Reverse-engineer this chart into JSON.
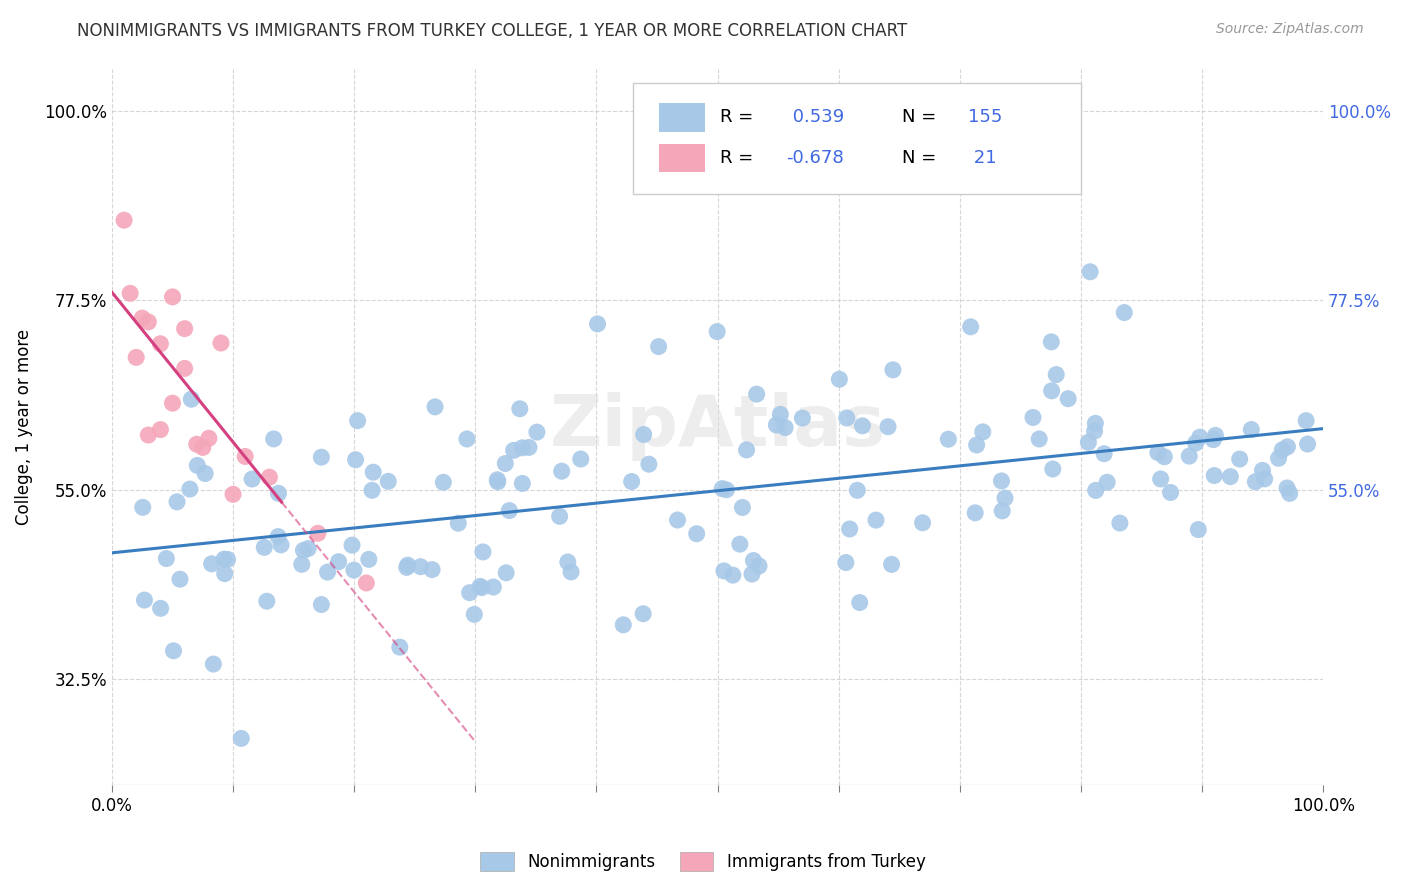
{
  "title": "NONIMMIGRANTS VS IMMIGRANTS FROM TURKEY COLLEGE, 1 YEAR OR MORE CORRELATION CHART",
  "source_text": "Source: ZipAtlas.com",
  "ylabel": "College, 1 year or more",
  "x_min": 0.0,
  "x_max": 1.0,
  "y_min": 0.2,
  "y_max": 1.05,
  "blue_R": 0.539,
  "blue_N": 155,
  "pink_R": -0.678,
  "pink_N": 21,
  "blue_color": "#a8c8e8",
  "pink_color": "#f4a7b9",
  "blue_line_color": "#3a7dbf",
  "pink_line_color": "#d44080",
  "background_color": "#ffffff",
  "grid_color": "#cccccc",
  "legend_label_blue": "Nonimmigrants",
  "legend_label_pink": "Immigrants from Turkey",
  "watermark": "ZipAtlas",
  "yticks": [
    0.325,
    0.55,
    0.775,
    1.0
  ],
  "yticklabels": [
    "32.5%",
    "55.0%",
    "77.5%",
    "100.0%"
  ],
  "right_yticks": [
    0.55,
    0.775,
    1.0
  ],
  "right_yticklabels": [
    "55.0%",
    "77.5%",
    "100.0%"
  ]
}
